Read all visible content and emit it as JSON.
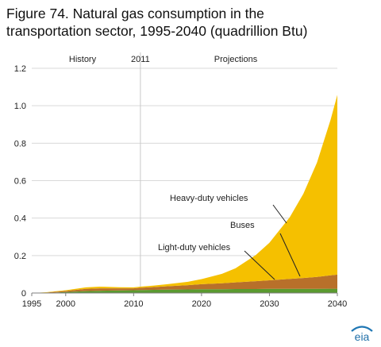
{
  "title_line1": "Figure 74. Natural gas consumption in the",
  "title_line2": "transportation sector, 1995-2040 (quadrillion Btu)",
  "logo_text": "eia",
  "chart_data": {
    "type": "area",
    "stacked": true,
    "xlim": [
      1995,
      2040
    ],
    "ylim": [
      0,
      1.2
    ],
    "x_ticks": [
      1995,
      2000,
      2010,
      2020,
      2030,
      2040
    ],
    "y_ticks": [
      0,
      0.2,
      0.4,
      0.6,
      0.8,
      1.0,
      1.2
    ],
    "y_tick_labels": [
      "0",
      "0.2",
      "0.4",
      "0.6",
      "0.8",
      "1.0",
      "1.2"
    ],
    "grid": "horizontal",
    "divider_year": 2011,
    "period_labels": {
      "history": "History",
      "divider": "2011",
      "projections": "Projections"
    },
    "x": [
      1995,
      1997,
      2000,
      2003,
      2005,
      2008,
      2010,
      2011,
      2013,
      2015,
      2018,
      2020,
      2023,
      2025,
      2028,
      2030,
      2033,
      2035,
      2037,
      2039,
      2040
    ],
    "series": [
      {
        "name": "Light-duty vehicles",
        "color": "#5a9a2f",
        "label_color": "#6aa535",
        "values": [
          0.0,
          0.0,
          0.005,
          0.01,
          0.012,
          0.014,
          0.015,
          0.016,
          0.017,
          0.018,
          0.019,
          0.02,
          0.02,
          0.021,
          0.021,
          0.022,
          0.022,
          0.022,
          0.022,
          0.023,
          0.023
        ]
      },
      {
        "name": "Buses",
        "color": "#b8702a",
        "label_color": "#b8803a",
        "values": [
          0.0,
          0.002,
          0.006,
          0.012,
          0.013,
          0.011,
          0.01,
          0.012,
          0.015,
          0.018,
          0.023,
          0.027,
          0.032,
          0.036,
          0.042,
          0.046,
          0.053,
          0.058,
          0.064,
          0.071,
          0.075
        ]
      },
      {
        "name": "Heavy-duty vehicles",
        "color": "#f5c000",
        "label_color": "#222222",
        "values": [
          0.0,
          0.002,
          0.004,
          0.008,
          0.009,
          0.006,
          0.005,
          0.006,
          0.008,
          0.011,
          0.018,
          0.027,
          0.05,
          0.075,
          0.14,
          0.2,
          0.33,
          0.45,
          0.61,
          0.83,
          0.96
        ]
      }
    ]
  }
}
